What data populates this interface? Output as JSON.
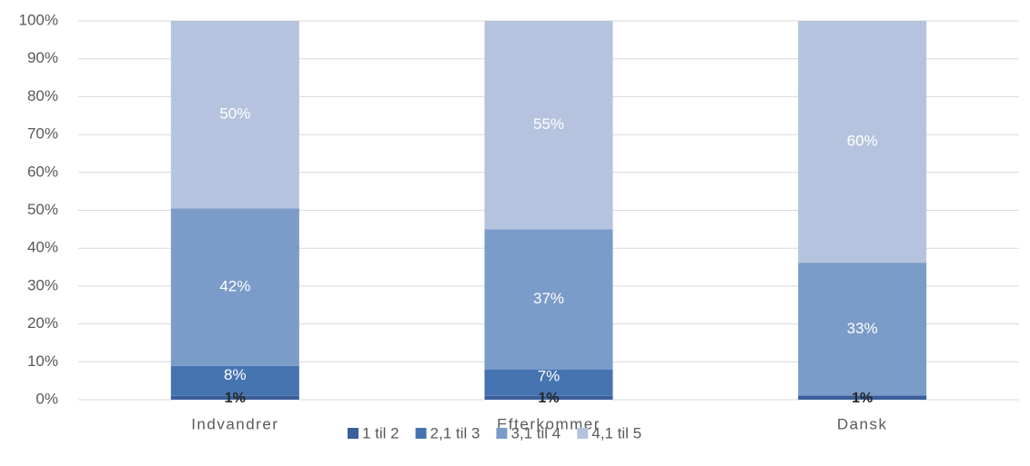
{
  "chart_data": {
    "type": "stacked_percent_bar",
    "categories": [
      "Indvandrer",
      "Efterkommer",
      "Dansk"
    ],
    "series": [
      {
        "name": "1 til 2",
        "color": "#3b5f9b",
        "values": [
          1,
          1,
          1
        ],
        "value_labels": [
          "1%",
          "1%",
          "1%"
        ]
      },
      {
        "name": "2,1 til 3",
        "color": "#4674b1",
        "values": [
          8,
          7,
          null
        ],
        "value_labels": [
          "8%",
          "7%",
          null
        ]
      },
      {
        "name": "3,1 til 4",
        "color": "#7b9bc8",
        "values": [
          42,
          37,
          33
        ],
        "value_labels": [
          "42%",
          "37%",
          "33%"
        ]
      },
      {
        "name": "4,1 til 5",
        "color": "#b5c3de",
        "values": [
          50,
          55,
          60
        ],
        "value_labels": [
          "50%",
          "55%",
          "60%"
        ]
      }
    ],
    "ylim": [
      0,
      100
    ],
    "yticks": [
      {
        "value": 0,
        "label": "0%"
      },
      {
        "value": 10,
        "label": "10%"
      },
      {
        "value": 20,
        "label": "20%"
      },
      {
        "value": 30,
        "label": "30%"
      },
      {
        "value": 40,
        "label": "40%"
      },
      {
        "value": 50,
        "label": "50%"
      },
      {
        "value": 60,
        "label": "60%"
      },
      {
        "value": 70,
        "label": "70%"
      },
      {
        "value": 80,
        "label": "80%"
      },
      {
        "value": 90,
        "label": "90%"
      },
      {
        "value": 100,
        "label": "100%"
      }
    ],
    "grid": true,
    "legend": "bottom"
  }
}
